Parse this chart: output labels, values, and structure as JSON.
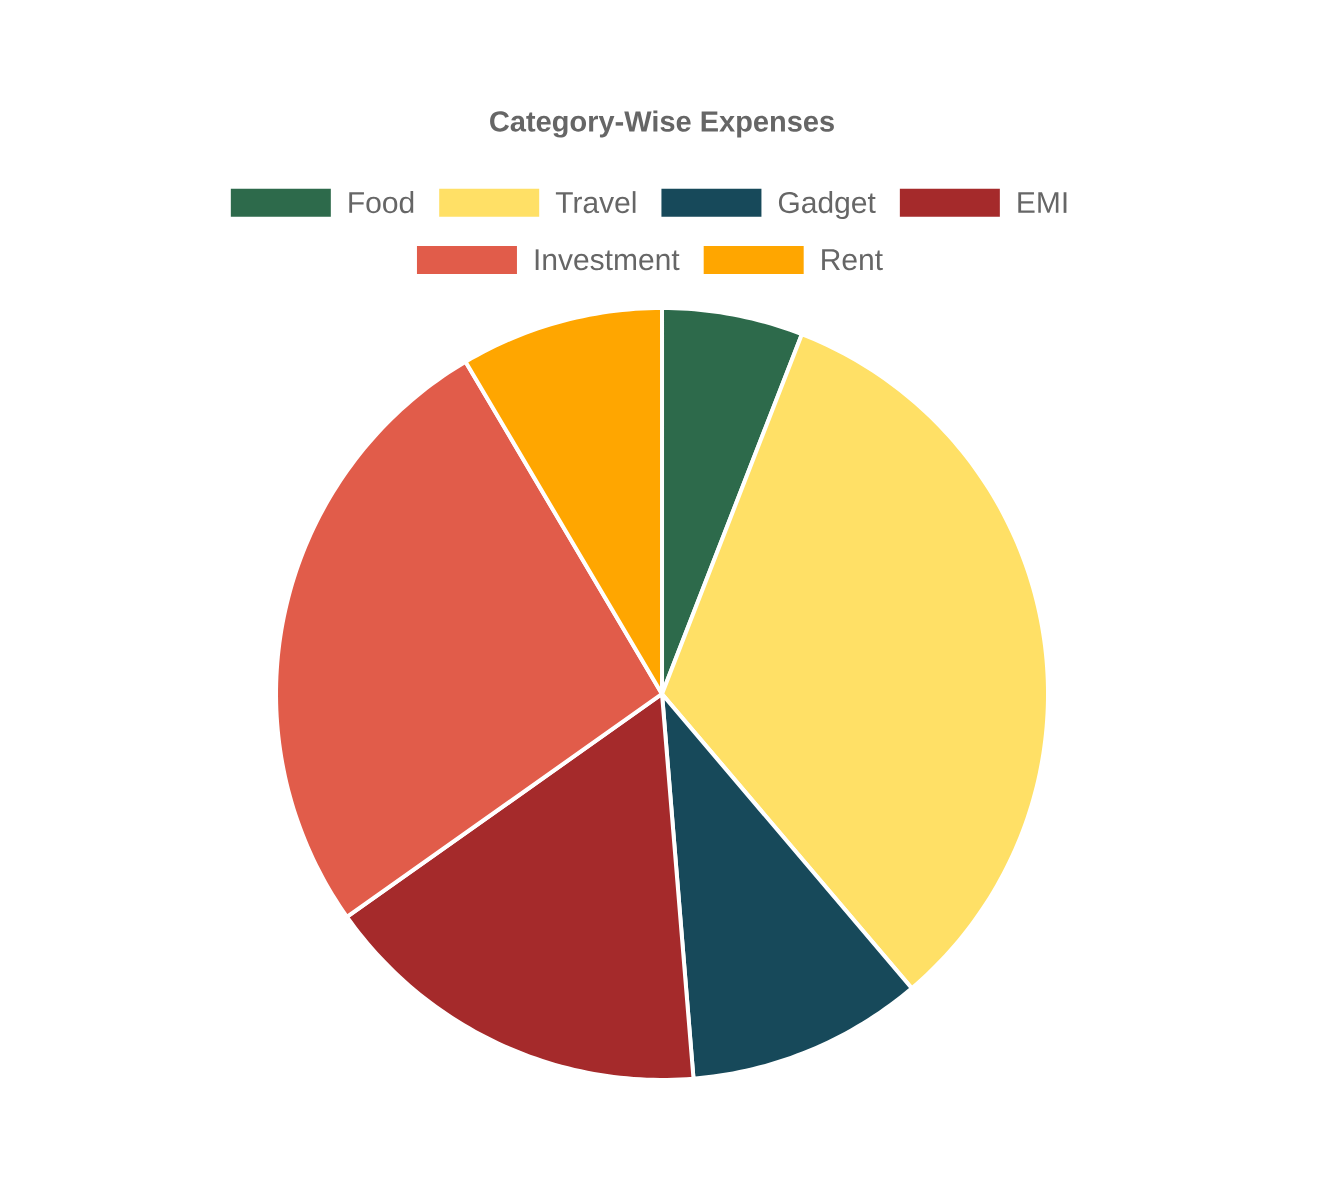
{
  "chart_data": {
    "type": "pie",
    "title": "Category-Wise Expenses",
    "categories": [
      "Food",
      "Travel",
      "Gadget",
      "EMI",
      "Investment",
      "Rent"
    ],
    "values": [
      5.9,
      32.9,
      9.9,
      16.5,
      26.3,
      8.5
    ],
    "colors": [
      "#2d6a4b",
      "#ffe066",
      "#17495a",
      "#a52a2b",
      "#e15c4a",
      "#ffa600"
    ],
    "legend": "top"
  }
}
